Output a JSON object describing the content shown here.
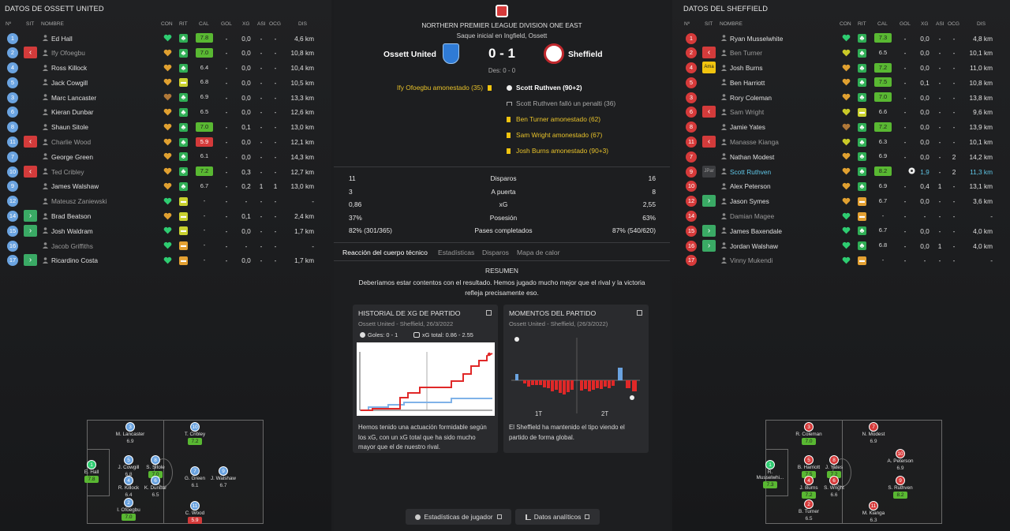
{
  "left": {
    "title": "DATOS DE OSSETT UNITED",
    "headers": {
      "n": "Nº",
      "sit": "SIT",
      "nombre": "NOMBRE",
      "con": "CON",
      "rit": "RIT",
      "cal": "CAL",
      "gol": "GOL",
      "xg": "XG",
      "asi": "ASI",
      "ocg": "OCG",
      "dis": "DIS"
    },
    "players": [
      {
        "num": "1",
        "name": "Ed Hall",
        "con": "g",
        "rit": "g",
        "cal": "7.8",
        "cs": "g",
        "gol": "-",
        "xg": "0,0",
        "asi": "-",
        "ocg": "-",
        "dis": "4,6 km"
      },
      {
        "num": "2",
        "sit": "out",
        "name": "Ify Ofoegbu",
        "con": "o",
        "rit": "g",
        "cal": "7.0",
        "cs": "g",
        "gol": "-",
        "xg": "0,0",
        "asi": "-",
        "ocg": "-",
        "dis": "10,8 km",
        "sub": true
      },
      {
        "num": "4",
        "name": "Ross Killock",
        "con": "o",
        "rit": "g",
        "cal": "6.4",
        "cs": "n",
        "gol": "-",
        "xg": "0,0",
        "asi": "-",
        "ocg": "-",
        "dis": "10,4 km"
      },
      {
        "num": "5",
        "name": "Jack Cowgill",
        "con": "o",
        "rit": "y",
        "cal": "6.8",
        "cs": "n",
        "gol": "-",
        "xg": "0,0",
        "asi": "-",
        "ocg": "-",
        "dis": "10,5 km"
      },
      {
        "num": "3",
        "name": "Marc Lancaster",
        "con": "b",
        "rit": "g",
        "cal": "6.9",
        "cs": "n",
        "gol": "-",
        "xg": "0,0",
        "asi": "-",
        "ocg": "-",
        "dis": "13,3 km"
      },
      {
        "num": "6",
        "name": "Kieran Dunbar",
        "con": "o",
        "rit": "g",
        "cal": "6.5",
        "cs": "n",
        "gol": "-",
        "xg": "0,0",
        "asi": "-",
        "ocg": "-",
        "dis": "12,6 km"
      },
      {
        "num": "8",
        "name": "Shaun Sitole",
        "con": "o",
        "rit": "g",
        "cal": "7.0",
        "cs": "g",
        "gol": "-",
        "xg": "0,1",
        "asi": "-",
        "ocg": "-",
        "dis": "13,0 km"
      },
      {
        "num": "11",
        "sit": "out",
        "name": "Charlie Wood",
        "con": "o",
        "rit": "g",
        "cal": "5.9",
        "cs": "r",
        "gol": "-",
        "xg": "0,0",
        "asi": "-",
        "ocg": "-",
        "dis": "12,1 km",
        "sub": true
      },
      {
        "num": "7",
        "name": "George Green",
        "con": "o",
        "rit": "g",
        "cal": "6.1",
        "cs": "n",
        "gol": "-",
        "xg": "0,0",
        "asi": "-",
        "ocg": "-",
        "dis": "14,3 km"
      },
      {
        "num": "10",
        "sit": "out",
        "name": "Ted Cribley",
        "con": "o",
        "rit": "g",
        "cal": "7.2",
        "cs": "g",
        "gol": "-",
        "xg": "0,3",
        "asi": "-",
        "ocg": "-",
        "dis": "12,7 km",
        "sub": true
      },
      {
        "num": "9",
        "name": "James Walshaw",
        "con": "o",
        "rit": "g",
        "cal": "6.7",
        "cs": "n",
        "gol": "-",
        "xg": "0,2",
        "asi": "1",
        "ocg": "1",
        "dis": "13,0 km"
      },
      {
        "num": "12",
        "name": "Mateusz Zaniewski",
        "con": "g",
        "rit": "y",
        "cal": "-",
        "cs": "n",
        "gol": "-",
        "xg": "-",
        "asi": "-",
        "ocg": "-",
        "dis": "-",
        "sub": true
      },
      {
        "num": "14",
        "sit": "in",
        "name": "Brad Beatson",
        "con": "o",
        "rit": "y",
        "cal": "-",
        "cs": "n",
        "gol": "-",
        "xg": "0,1",
        "asi": "-",
        "ocg": "-",
        "dis": "2,4 km"
      },
      {
        "num": "15",
        "sit": "in",
        "name": "Josh Waldram",
        "con": "g",
        "rit": "y",
        "cal": "-",
        "cs": "n",
        "gol": "-",
        "xg": "0,0",
        "asi": "-",
        "ocg": "-",
        "dis": "1,7 km"
      },
      {
        "num": "16",
        "name": "Jacob Griffiths",
        "con": "g",
        "rit": "o",
        "cal": "-",
        "cs": "n",
        "gol": "-",
        "xg": "-",
        "asi": "-",
        "ocg": "-",
        "dis": "-",
        "sub": true
      },
      {
        "num": "17",
        "sit": "in",
        "name": "Ricardino Costa",
        "con": "g",
        "rit": "o",
        "cal": "-",
        "cs": "n",
        "gol": "-",
        "xg": "0,0",
        "asi": "-",
        "ocg": "-",
        "dis": "1,7 km"
      }
    ],
    "pitch": [
      {
        "num": "1",
        "name": "E. Hall",
        "r": "7.8",
        "rs": "g",
        "green": true
      },
      {
        "num": "3",
        "name": "M. Lancaster",
        "r": "6.9",
        "rs": "n"
      },
      {
        "num": "5",
        "name": "J. Cowgill",
        "r": "6.8",
        "rs": "n"
      },
      {
        "num": "4",
        "name": "R. Killock",
        "r": "6.4",
        "rs": "n"
      },
      {
        "num": "2",
        "name": "I. Ofoegbu",
        "r": "7.0",
        "rs": "g"
      },
      {
        "num": "8",
        "name": "S. Sitole",
        "r": "7.0",
        "rs": "g"
      },
      {
        "num": "6",
        "name": "K. Dunbar",
        "r": "6.5",
        "rs": "n"
      },
      {
        "num": "10",
        "name": "T. Cribley",
        "r": "7.2",
        "rs": "g"
      },
      {
        "num": "7",
        "name": "G. Green",
        "r": "6.1",
        "rs": "n"
      },
      {
        "num": "11",
        "name": "C. Wood",
        "r": "5.9",
        "rs": "r"
      },
      {
        "num": "9",
        "name": "J. Walshaw",
        "r": "6.7",
        "rs": "n"
      }
    ]
  },
  "right": {
    "title": "DATOS DEL SHEFFIELD",
    "headers": {
      "n": "Nº",
      "sit": "SIT",
      "nombre": "NOMBRE",
      "con": "CON",
      "rit": "RIT",
      "cal": "CAL",
      "gol": "GOL",
      "xg": "XG",
      "asi": "ASI",
      "ocg": "OCG",
      "dis": "DIS"
    },
    "players": [
      {
        "num": "1",
        "name": "Ryan Musselwhite",
        "con": "g",
        "rit": "g",
        "cal": "7.3",
        "cs": "g",
        "gol": "-",
        "xg": "0,0",
        "asi": "-",
        "ocg": "-",
        "dis": "4,8 km"
      },
      {
        "num": "2",
        "sit": "out",
        "name": "Ben Turner",
        "con": "y",
        "rit": "g",
        "cal": "6.5",
        "cs": "n",
        "gol": "-",
        "xg": "0,0",
        "asi": "-",
        "ocg": "-",
        "dis": "10,1 km",
        "sub": true
      },
      {
        "num": "4",
        "sit": "yel",
        "sitlabel": "Ama",
        "name": "Josh Burns",
        "con": "o",
        "rit": "g",
        "cal": "7.2",
        "cs": "g",
        "gol": "-",
        "xg": "0,0",
        "asi": "-",
        "ocg": "-",
        "dis": "11,0 km"
      },
      {
        "num": "5",
        "name": "Ben Harriott",
        "con": "o",
        "rit": "g",
        "cal": "7.5",
        "cs": "g",
        "gol": "-",
        "xg": "0,1",
        "asi": "-",
        "ocg": "-",
        "dis": "10,8 km"
      },
      {
        "num": "3",
        "name": "Rory Coleman",
        "con": "o",
        "rit": "g",
        "cal": "7.0",
        "cs": "g",
        "gol": "-",
        "xg": "0,0",
        "asi": "-",
        "ocg": "-",
        "dis": "13,8 km"
      },
      {
        "num": "6",
        "sit": "out",
        "name": "Sam Wright",
        "con": "y",
        "rit": "y",
        "cal": "6.6",
        "cs": "n",
        "gol": "-",
        "xg": "0,0",
        "asi": "-",
        "ocg": "-",
        "dis": "9,6 km",
        "sub": true
      },
      {
        "num": "8",
        "name": "Jamie Yates",
        "con": "b",
        "rit": "g",
        "cal": "7.2",
        "cs": "g",
        "gol": "-",
        "xg": "0,0",
        "asi": "-",
        "ocg": "-",
        "dis": "13,9 km"
      },
      {
        "num": "11",
        "sit": "out",
        "name": "Manasse Kianga",
        "con": "y",
        "rit": "g",
        "cal": "6.3",
        "cs": "n",
        "gol": "-",
        "xg": "0,0",
        "asi": "-",
        "ocg": "-",
        "dis": "10,1 km",
        "sub": true
      },
      {
        "num": "7",
        "name": "Nathan Modest",
        "con": "o",
        "rit": "g",
        "cal": "6.9",
        "cs": "n",
        "gol": "-",
        "xg": "0,0",
        "asi": "-",
        "ocg": "2",
        "dis": "14,2 km"
      },
      {
        "num": "9",
        "sit": "gray",
        "sitlabel": "JPar",
        "name": "Scott Ruthven",
        "con": "o",
        "rit": "g",
        "cal": "8.2",
        "cs": "g",
        "gol": "ball",
        "xg": "1,9",
        "asi": "-",
        "ocg": "2",
        "dis": "11,3 km",
        "hl": true
      },
      {
        "num": "10",
        "name": "Alex Peterson",
        "con": "o",
        "rit": "g",
        "cal": "6.9",
        "cs": "n",
        "gol": "-",
        "xg": "0,4",
        "asi": "1",
        "ocg": "-",
        "dis": "13,1 km"
      },
      {
        "num": "12",
        "sit": "in",
        "name": "Jason Symes",
        "con": "o",
        "rit": "o",
        "cal": "6.7",
        "cs": "n",
        "gol": "-",
        "xg": "0,0",
        "asi": "-",
        "ocg": "-",
        "dis": "3,6 km"
      },
      {
        "num": "14",
        "name": "Damian Magee",
        "con": "g",
        "rit": "o",
        "cal": "-",
        "cs": "n",
        "gol": "-",
        "xg": "-",
        "asi": "-",
        "ocg": "-",
        "dis": "-",
        "sub": true
      },
      {
        "num": "15",
        "sit": "in",
        "name": "James Baxendale",
        "con": "g",
        "rit": "g",
        "cal": "6.7",
        "cs": "n",
        "gol": "-",
        "xg": "0,0",
        "asi": "-",
        "ocg": "-",
        "dis": "4,0 km"
      },
      {
        "num": "16",
        "sit": "in",
        "name": "Jordan Walshaw",
        "con": "g",
        "rit": "g",
        "cal": "6.8",
        "cs": "n",
        "gol": "-",
        "xg": "0,0",
        "asi": "1",
        "ocg": "-",
        "dis": "4,0 km"
      },
      {
        "num": "17",
        "name": "Vinny Mukendi",
        "con": "g",
        "rit": "o",
        "cal": "-",
        "cs": "n",
        "gol": "-",
        "xg": "-",
        "asi": "-",
        "ocg": "-",
        "dis": "-",
        "sub": true
      }
    ],
    "pitch": [
      {
        "num": "1",
        "name": "R. Musselwhi...",
        "r": "7.3",
        "rs": "g",
        "green": true
      },
      {
        "num": "3",
        "name": "R. Coleman",
        "r": "7.0",
        "rs": "g"
      },
      {
        "num": "5",
        "name": "B. Harriott",
        "r": "7.5",
        "rs": "g"
      },
      {
        "num": "4",
        "name": "J. Burns",
        "r": "7.2",
        "rs": "g"
      },
      {
        "num": "2",
        "name": "B. Turner",
        "r": "6.5",
        "rs": "n"
      },
      {
        "num": "8",
        "name": "J. Yates",
        "r": "7.2",
        "rs": "g"
      },
      {
        "num": "6",
        "name": "S. Wright",
        "r": "6.6",
        "rs": "n"
      },
      {
        "num": "7",
        "name": "N. Modest",
        "r": "6.9",
        "rs": "n"
      },
      {
        "num": "11",
        "name": "M. Kianga",
        "r": "6.3",
        "rs": "n"
      },
      {
        "num": "10",
        "name": "A. Peterson",
        "r": "6.9",
        "rs": "n"
      },
      {
        "num": "9",
        "name": "S. Ruthven",
        "r": "8.2",
        "rs": "g"
      }
    ]
  },
  "center": {
    "league": "NORTHERN PREMIER LEAGUE DIVISION ONE EAST",
    "kickoff": "Saque inicial en Ingfield, Ossett",
    "home": "Ossett United",
    "away": "Sheffield",
    "score": "0 - 1",
    "ht": "Des: 0 - 0",
    "home_events": [
      "Ify Ofoegbu amonestado (35)"
    ],
    "away_events": [
      {
        "t": "Scott Ruthven (90+2)",
        "i": "ball"
      },
      {
        "t": "Scott Ruthven falló un penalti (36)",
        "i": "pen"
      },
      {
        "t": "Ben Turner amonestado (62)",
        "i": "yc"
      },
      {
        "t": "Sam Wright amonestado (67)",
        "i": "yc"
      },
      {
        "t": "Josh Burns amonestado (90+3)",
        "i": "yc"
      }
    ],
    "stats": [
      {
        "l": "11",
        "c": "Disparos",
        "r": "16"
      },
      {
        "l": "3",
        "c": "A puerta",
        "r": "8"
      },
      {
        "l": "0,86",
        "c": "xG",
        "r": "2,55"
      },
      {
        "l": "37%",
        "c": "Posesión",
        "r": "63%"
      },
      {
        "l": "82% (301/365)",
        "c": "Pases completados",
        "r": "87% (540/620)"
      }
    ],
    "tabs": [
      "Reacción del cuerpo técnico",
      "Estadísticas",
      "Disparos",
      "Mapa de calor"
    ],
    "resumen_title": "RESUMEN",
    "resumen_text": "Deberíamos estar contentos con el resultado. Hemos jugado mucho mejor que el rival y la victoria refleja precisamente eso.",
    "card1": {
      "title": "HISTORIAL DE XG DE PARTIDO",
      "sub": "Ossett United - Sheffield, 26/3/2022",
      "goals": "Goles: 0 - 1",
      "xgtotal": "xG total: 0.86 - 2.55",
      "desc": "Hemos tenido una actuación formidable según los xG, con un xG total que ha sido mucho mayor que el de nuestro rival."
    },
    "card2": {
      "title": "MOMENTOS DEL PARTIDO",
      "sub": "Ossett United - Sheffield, (26/3/2022)",
      "h1": "1T",
      "h2": "2T",
      "desc": "El Sheffield ha mantenido el tipo viendo el partido de forma global."
    },
    "btn1": "Estadísticas de jugador",
    "btn2": "Datos analíticos"
  },
  "colors": {
    "green": "#2fae55",
    "orange": "#e3a032",
    "blue": "#6aa3e0",
    "red": "#d43a3a",
    "xg_home": "#7fb2e8",
    "xg_away": "#e02828"
  }
}
